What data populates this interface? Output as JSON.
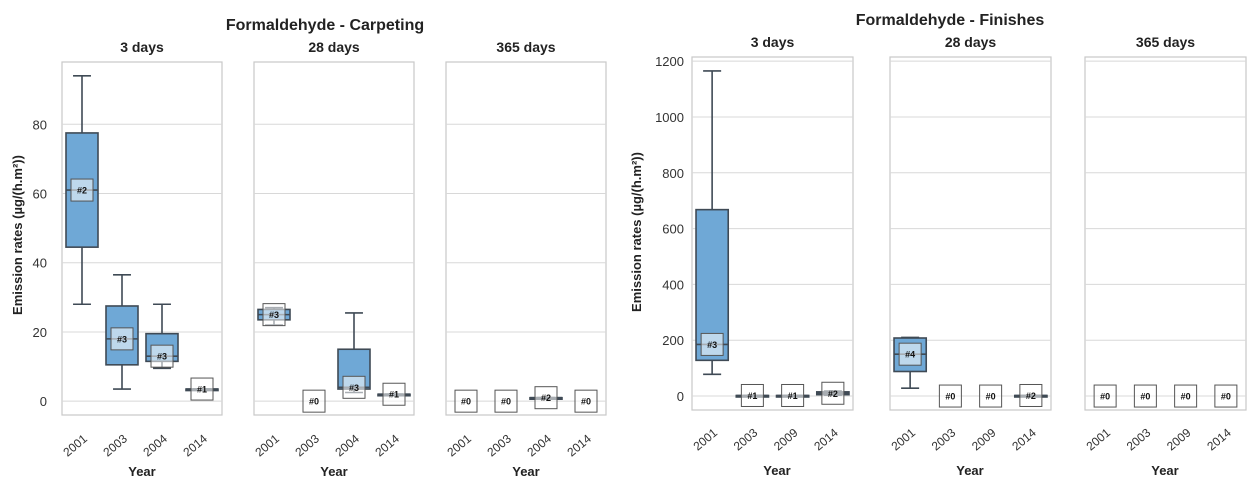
{
  "chart_data": [
    {
      "type": "box",
      "title": "Formaldehyde - Carpeting",
      "ylabel": "Emission rates (µg/(h.m²))",
      "xlabel": "Year",
      "ylim": [
        -4,
        98
      ],
      "yticks": [
        0,
        20,
        40,
        60,
        80
      ],
      "panels": [
        {
          "title": "3 days",
          "categories": [
            "2001",
            "2003",
            "2004",
            "2014"
          ],
          "boxes": [
            {
              "year": "2001",
              "n_label": "#2",
              "min": 28,
              "q1": 44.5,
              "median": 61,
              "q3": 77.5,
              "max": 94
            },
            {
              "year": "2003",
              "n_label": "#3",
              "min": 3.5,
              "q1": 10.5,
              "median": 18,
              "q3": 27.5,
              "max": 36.5
            },
            {
              "year": "2004",
              "n_label": "#3",
              "min": 9.5,
              "q1": 11.5,
              "median": 13,
              "q3": 19.5,
              "max": 28
            },
            {
              "year": "2014",
              "n_label": "#1",
              "min": 3.5,
              "q1": 3.5,
              "median": 3.5,
              "q3": 3.5,
              "max": 3.5
            }
          ]
        },
        {
          "title": "28 days",
          "categories": [
            "2001",
            "2003",
            "2004",
            "2014"
          ],
          "boxes": [
            {
              "year": "2001",
              "n_label": "#3",
              "min": 22,
              "q1": 23.5,
              "median": 25,
              "q3": 26.5,
              "max": 27
            },
            {
              "year": "2003",
              "n_label": "#0",
              "min": null,
              "q1": null,
              "median": null,
              "q3": null,
              "max": null
            },
            {
              "year": "2004",
              "n_label": "#3",
              "min": 2.5,
              "q1": 3.5,
              "median": 4,
              "q3": 15,
              "max": 25.5
            },
            {
              "year": "2014",
              "n_label": "#1",
              "min": 2,
              "q1": 2,
              "median": 2,
              "q3": 2,
              "max": 2
            }
          ]
        },
        {
          "title": "365 days",
          "categories": [
            "2001",
            "2003",
            "2004",
            "2014"
          ],
          "boxes": [
            {
              "year": "2001",
              "n_label": "#0",
              "min": null,
              "q1": null,
              "median": null,
              "q3": null,
              "max": null
            },
            {
              "year": "2003",
              "n_label": "#0",
              "min": null,
              "q1": null,
              "median": null,
              "q3": null,
              "max": null
            },
            {
              "year": "2004",
              "n_label": "#2",
              "min": 1,
              "q1": 1,
              "median": 1,
              "q3": 1,
              "max": 1
            },
            {
              "year": "2014",
              "n_label": "#0",
              "min": null,
              "q1": null,
              "median": null,
              "q3": null,
              "max": null
            }
          ]
        }
      ]
    },
    {
      "type": "box",
      "title": "Formaldehyde - Finishes",
      "ylabel": "Emission rates (µg/(h.m²))",
      "xlabel": "Year",
      "ylim": [
        -50,
        1215
      ],
      "yticks": [
        0,
        200,
        400,
        600,
        800,
        1000,
        1200
      ],
      "panels": [
        {
          "title": "3 days",
          "categories": [
            "2001",
            "2003",
            "2009",
            "2014"
          ],
          "boxes": [
            {
              "year": "2001",
              "n_label": "#3",
              "min": 78,
              "q1": 128,
              "median": 185,
              "q3": 668,
              "max": 1165
            },
            {
              "year": "2003",
              "n_label": "#1",
              "min": 2,
              "q1": 2,
              "median": 2,
              "q3": 2,
              "max": 2
            },
            {
              "year": "2009",
              "n_label": "#1",
              "min": 2,
              "q1": 2,
              "median": 2,
              "q3": 2,
              "max": 2
            },
            {
              "year": "2014",
              "n_label": "#2",
              "min": 3,
              "q1": 5,
              "median": 10,
              "q3": 15,
              "max": 18
            }
          ]
        },
        {
          "title": "28 days",
          "categories": [
            "2001",
            "2003",
            "2009",
            "2014"
          ],
          "boxes": [
            {
              "year": "2001",
              "n_label": "#4",
              "min": 28,
              "q1": 88,
              "median": 150,
              "q3": 208,
              "max": 210
            },
            {
              "year": "2003",
              "n_label": "#0",
              "min": null,
              "q1": null,
              "median": null,
              "q3": null,
              "max": null
            },
            {
              "year": "2009",
              "n_label": "#0",
              "min": null,
              "q1": null,
              "median": null,
              "q3": null,
              "max": null
            },
            {
              "year": "2014",
              "n_label": "#2",
              "min": 2,
              "q1": 2,
              "median": 2,
              "q3": 2,
              "max": 2
            }
          ]
        },
        {
          "title": "365 days",
          "categories": [
            "2001",
            "2003",
            "2009",
            "2014"
          ],
          "boxes": [
            {
              "year": "2001",
              "n_label": "#0",
              "min": null,
              "q1": null,
              "median": null,
              "q3": null,
              "max": null
            },
            {
              "year": "2003",
              "n_label": "#0",
              "min": null,
              "q1": null,
              "median": null,
              "q3": null,
              "max": null
            },
            {
              "year": "2009",
              "n_label": "#0",
              "min": null,
              "q1": null,
              "median": null,
              "q3": null,
              "max": null
            },
            {
              "year": "2014",
              "n_label": "#0",
              "min": null,
              "q1": null,
              "median": null,
              "q3": null,
              "max": null
            }
          ]
        }
      ]
    }
  ],
  "colors": {
    "box_fill": "#6fa8d6",
    "box_edge": "#3f4a55",
    "grid": "#d8d8d8",
    "panel_frame": "#c8c8c8",
    "label_box_fill": "#ffffff"
  }
}
